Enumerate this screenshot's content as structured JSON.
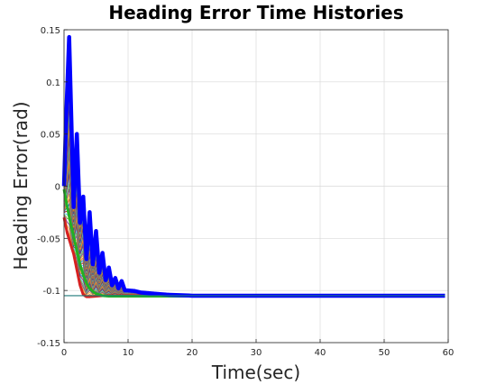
{
  "chart_data": {
    "type": "line",
    "title": "Heading Error Time Histories",
    "xlabel": "Time(sec)",
    "ylabel": "Heading Error(rad)",
    "xlim": [
      0,
      60
    ],
    "ylim": [
      -0.15,
      0.15
    ],
    "xticks": [
      0,
      10,
      20,
      30,
      40,
      50,
      60
    ],
    "yticks": [
      -0.15,
      -0.1,
      -0.05,
      0,
      0.05,
      0.1,
      0.15
    ],
    "xtick_labels": [
      "0",
      "10",
      "20",
      "30",
      "40",
      "50",
      "60"
    ],
    "ytick_labels": [
      "-0.15",
      "-0.1",
      "-0.05",
      "0",
      "0.05",
      "0.1",
      "0.15"
    ],
    "grid": true,
    "steady_state": -0.105,
    "series_upper_envelope": {
      "color": "#0000ff",
      "x": [
        0,
        0.3,
        0.8,
        1.5,
        2.0,
        2.5,
        3.0,
        3.5,
        4.0,
        4.5,
        5.0,
        5.5,
        6.0,
        6.5,
        7.0,
        7.5,
        8.0,
        8.5,
        9.0,
        9.5,
        10,
        11,
        12,
        14,
        16,
        18,
        20,
        25,
        30,
        40,
        50,
        60
      ],
      "y": [
        0,
        0.06,
        0.143,
        -0.02,
        0.05,
        -0.035,
        -0.01,
        -0.07,
        -0.025,
        -0.075,
        -0.043,
        -0.083,
        -0.064,
        -0.09,
        -0.078,
        -0.095,
        -0.088,
        -0.098,
        -0.091,
        -0.1,
        -0.1,
        -0.1005,
        -0.102,
        -0.103,
        -0.104,
        -0.1045,
        -0.105,
        -0.105,
        -0.105,
        -0.105,
        -0.105,
        -0.105
      ]
    },
    "series_lower_envelope": {
      "color": "#d62020",
      "x": [
        0,
        0.5,
        1.0,
        1.5,
        2.0,
        2.5,
        3.0,
        3.5,
        4.0,
        5.0,
        6.0,
        8.0,
        10,
        60
      ],
      "y": [
        -0.03,
        -0.045,
        -0.055,
        -0.065,
        -0.08,
        -0.095,
        -0.104,
        -0.106,
        -0.106,
        -0.1055,
        -0.105,
        -0.105,
        -0.105,
        -0.105
      ]
    },
    "series_green": {
      "color": "#22b022",
      "x": [
        0,
        0.5,
        1.0,
        1.5,
        2.0,
        2.5,
        3.0,
        3.5,
        4.0,
        4.5,
        5.0,
        6.0,
        7.0,
        8.0,
        10,
        60
      ],
      "y": [
        -0.003,
        -0.02,
        -0.035,
        -0.048,
        -0.062,
        -0.075,
        -0.085,
        -0.093,
        -0.098,
        -0.101,
        -0.103,
        -0.105,
        -0.1055,
        -0.1055,
        -0.1055,
        -0.1055
      ]
    },
    "family_count": 40
  }
}
